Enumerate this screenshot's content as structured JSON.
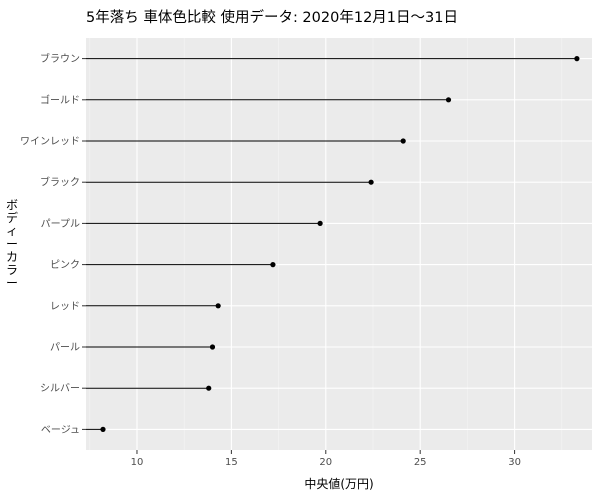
{
  "chart_data": {
    "type": "lollipop",
    "title": "5年落ち 車体色比較 使用データ: 2020年12月1日～31日",
    "xlabel": "中央値(万円)",
    "ylabel": "ボディーカラー",
    "xlim": [
      7.3,
      34.1
    ],
    "x_ticks": [
      10,
      15,
      20,
      25,
      30
    ],
    "grid": true,
    "legend": "none",
    "categories": [
      "ブラウン",
      "ゴールド",
      "ワインレッド",
      "ブラック",
      "パープル",
      "ピンク",
      "レッド",
      "パール",
      "シルバー",
      "ベージュ"
    ],
    "values": [
      33.3,
      26.5,
      24.1,
      22.4,
      19.7,
      17.2,
      14.3,
      14.0,
      13.8,
      8.2
    ],
    "colors": {
      "panel": "#ebebeb",
      "grid_major": "#ffffff",
      "grid_minor": "#f5f5f5",
      "mark": "#000000"
    }
  }
}
